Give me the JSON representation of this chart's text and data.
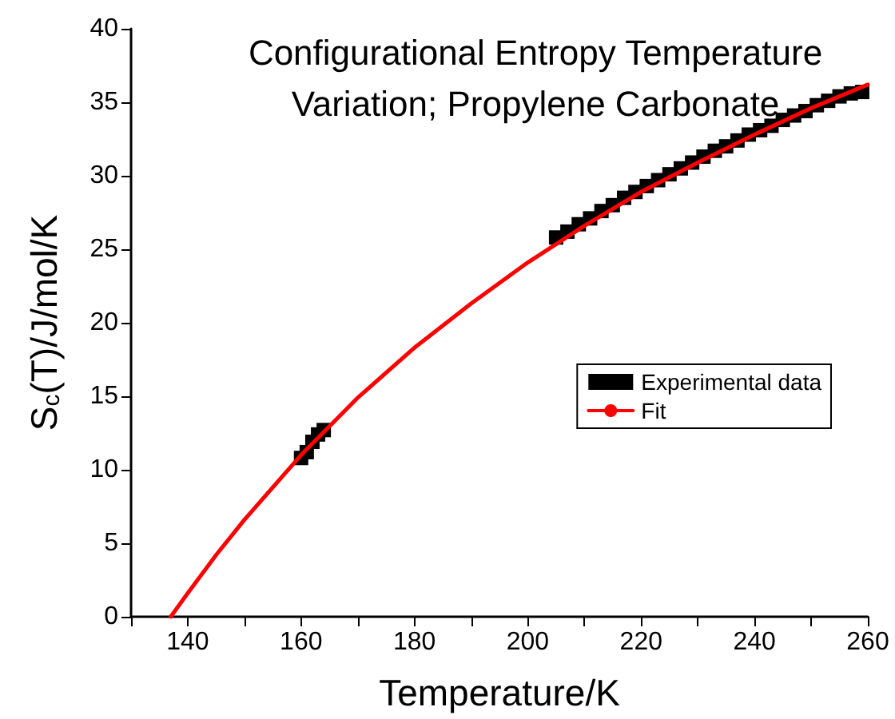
{
  "chart_data": {
    "type": "scatter",
    "title": "Configurational Entropy Temperature\nVariation; Propylene Carbonate",
    "xlabel": "Temperature/K",
    "ylabel": "S$_{c}$(T)/J/mol/K",
    "xlim": [
      130,
      260
    ],
    "ylim": [
      0,
      40
    ],
    "xticks": [
      {
        "value": 130,
        "label": null
      },
      140,
      {
        "value": 150,
        "label": null
      },
      160,
      {
        "value": 170,
        "label": null
      },
      180,
      {
        "value": 190,
        "label": null
      },
      200,
      {
        "value": 210,
        "label": null
      },
      220,
      {
        "value": 230,
        "label": null
      },
      240,
      {
        "value": 250,
        "label": null
      },
      260
    ],
    "yticks": [
      0,
      5,
      10,
      15,
      20,
      25,
      30,
      35,
      40
    ],
    "legend": "right",
    "grid": false,
    "series": [
      {
        "name": "Experimental data",
        "marker": "square",
        "color": "#000000",
        "x": [
          160,
          161,
          162,
          163,
          164,
          205,
          207,
          209,
          211,
          213,
          215,
          217,
          219,
          221,
          223,
          225,
          227,
          229,
          231,
          233,
          235,
          237,
          239,
          241,
          243,
          245,
          247,
          249,
          251,
          253,
          255,
          257,
          259
        ],
        "values": [
          10.8,
          11.2,
          11.9,
          12.4,
          12.7,
          25.8,
          26.2,
          26.7,
          27.1,
          27.6,
          28.0,
          28.5,
          28.9,
          29.3,
          29.7,
          30.1,
          30.5,
          30.9,
          31.3,
          31.7,
          32.0,
          32.4,
          32.8,
          33.1,
          33.4,
          33.8,
          34.1,
          34.4,
          34.8,
          35.1,
          35.4,
          35.6,
          35.7
        ]
      },
      {
        "name": "Fit",
        "type": "line",
        "marker": "none",
        "line_style": "solid",
        "color": "#ff0000",
        "x": [
          137,
          140,
          145,
          150,
          160,
          170,
          180,
          190,
          200,
          210,
          220,
          230,
          240,
          250,
          260
        ],
        "values": [
          0,
          1.6,
          4.2,
          6.6,
          11.0,
          14.9,
          18.3,
          21.3,
          24.1,
          26.6,
          28.9,
          30.9,
          32.8,
          34.6,
          36.2
        ]
      }
    ]
  }
}
